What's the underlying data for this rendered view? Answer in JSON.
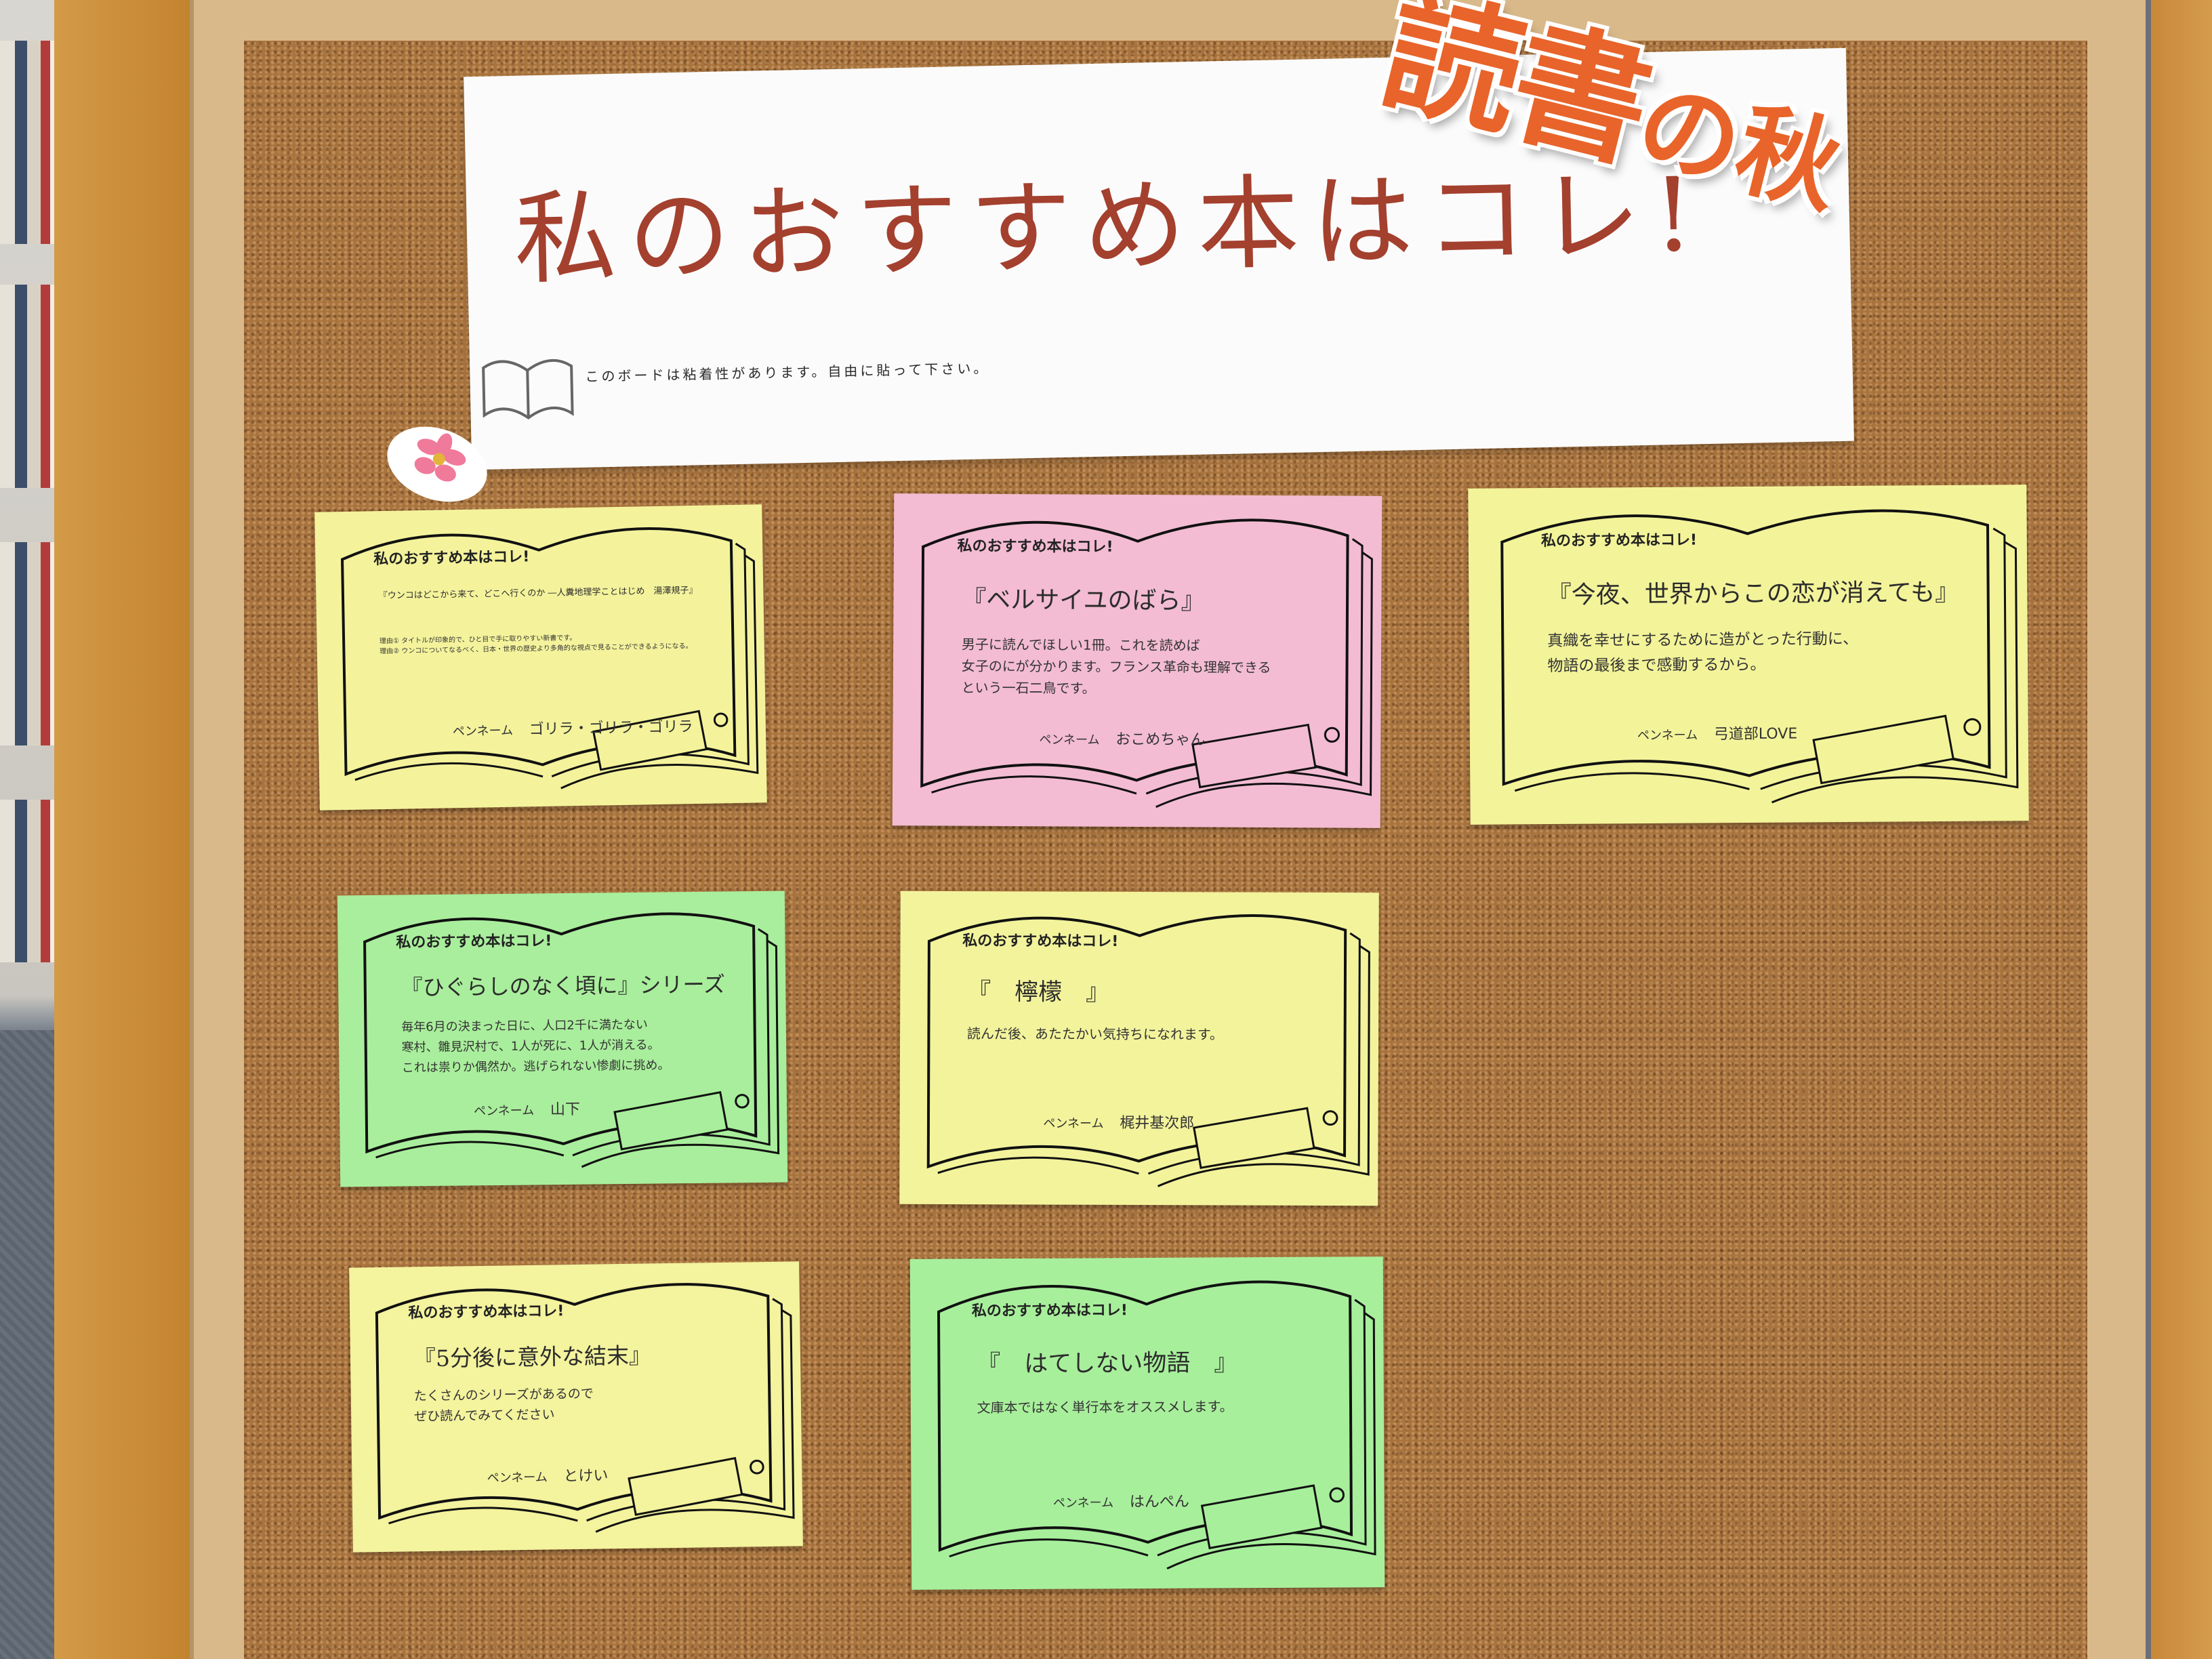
{
  "header": {
    "title": "私のおすすめ本はコレ!",
    "subtitle": "このボードは粘着性があります。自由に貼って下さい。",
    "badge_main": "読書",
    "badge_tail": "の秋"
  },
  "cards": [
    {
      "heading": "私のおすすめ本はコレ!",
      "book_title": "『ウンコはどこから来て、どこへ行くのか ―人糞地理学ことはじめ　湯澤規子』",
      "lines": [
        "理由① タイトルが印象的で、ひと目で手に取りやすい新書です。",
        "理由② ウンコについてなるべく、日本・世界の歴史より多角的な視点で見ることができるようになる。"
      ],
      "pen_label": "ペンネーム",
      "pen_name": "ゴリラ・ゴリラ・ゴリラ",
      "color": "#f4f39c"
    },
    {
      "heading": "私のおすすめ本はコレ!",
      "book_title": "『ベルサイユのばら』",
      "lines": [
        "男子に読んでほしい1冊。これを読めば",
        "女子のにが分かります。フランス革命も理解できる",
        "という一石二鳥です。"
      ],
      "pen_label": "ペンネーム",
      "pen_name": "おこめちゃん",
      "color": "#f3bcd2"
    },
    {
      "heading": "私のおすすめ本はコレ!",
      "book_title": "『今夜、世界からこの恋が消えても』",
      "lines": [
        "真織を幸せにするために造がとった行動に、",
        "物語の最後まで感動するから。"
      ],
      "pen_label": "ペンネーム",
      "pen_name": "弓道部LOVE",
      "color": "#f3f39a"
    },
    {
      "heading": "私のおすすめ本はコレ!",
      "book_title": "『ひぐらしのなく頃に』シリーズ",
      "lines": [
        "毎年6月の決まった日に、人口2千に満たない",
        "寒村、雛見沢村で、1人が死に、1人が消える。",
        "これは祟りか偶然か。逃げられない惨劇に挑め。"
      ],
      "pen_label": "ペンネーム",
      "pen_name": "山下",
      "color": "#a9ee9c"
    },
    {
      "heading": "私のおすすめ本はコレ!",
      "book_title": "『　檸檬　』",
      "lines": [
        "読んだ後、あたたかい気持ちになれます。"
      ],
      "pen_label": "ペンネーム",
      "pen_name": "梶井基次郎",
      "color": "#f3f39c"
    },
    {
      "heading": "私のおすすめ本はコレ!",
      "book_title": "『5分後に意外な結末』",
      "lines": [
        "たくさんのシリーズがあるので",
        "ぜひ読んでみてください"
      ],
      "pen_label": "ペンネーム",
      "pen_name": "とけい",
      "color": "#f4f39e"
    },
    {
      "heading": "私のおすすめ本はコレ!",
      "book_title": "『　はてしない物語　』",
      "lines": [
        "文庫本ではなく単行本をオススメします。"
      ],
      "pen_label": "ペンネーム",
      "pen_name": "はんぺん",
      "color": "#a8ef9c"
    }
  ],
  "colors": {
    "cork": "#a9733d",
    "frame": "#d9b98a",
    "title_ink": "#a4402e",
    "badge": "#e8642a"
  }
}
